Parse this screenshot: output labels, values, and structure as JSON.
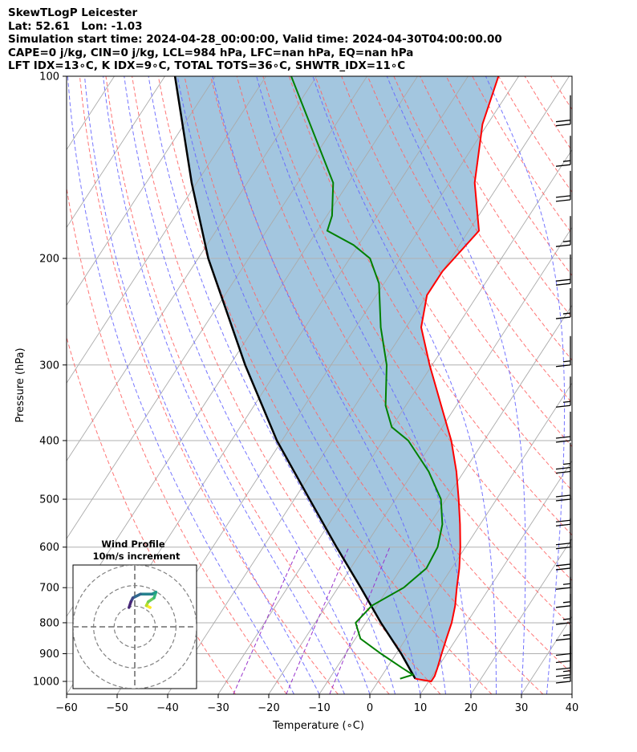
{
  "header": {
    "line1": "SkewTLogP Leicester",
    "line2": "Lat: 52.61   Lon: -1.03",
    "line3": "Simulation start time: 2024-04-28_00:00:00, Valid time: 2024-04-30T04:00:00.00",
    "line4": "CAPE=0 j/kg, CIN=0 j/kg, LCL=984 hPa, LFC=nan hPa, EQ=nan hPa",
    "line5": "LFT IDX=13∘C, K IDX=9∘C, TOTAL TOTS=36∘C, SHWTR_IDX=11∘C"
  },
  "chart_data": {
    "type": "skew-t log-p",
    "xlabel": "Temperature (∘C)",
    "ylabel": "Pressure (hPa)",
    "xlim": [
      -60,
      40
    ],
    "ylim": [
      1050,
      100
    ],
    "y_scale": "log",
    "x_ticks": [
      "−60",
      "−50",
      "−40",
      "−30",
      "−20",
      "−10",
      "0",
      "10",
      "20",
      "30",
      "40"
    ],
    "y_ticks": [
      "100",
      "200",
      "300",
      "400",
      "500",
      "600",
      "700",
      "800",
      "900",
      "1000"
    ],
    "grid": true,
    "colors": {
      "temperature": "#ff0000",
      "dewpoint": "#008000",
      "parcel": "#000000",
      "cin_cape_shading": "#a3c6df",
      "dry_adiabats": "#ff6666",
      "moist_adiabats": "#6666ff",
      "mixing_ratio": "#9933cc",
      "isotherms": "#aaaaaa"
    },
    "temperature_profile": [
      {
        "p": 990,
        "t": 7
      },
      {
        "p": 1000,
        "t": 10.5
      },
      {
        "p": 980,
        "t": 10.5
      },
      {
        "p": 950,
        "t": 10
      },
      {
        "p": 900,
        "t": 9
      },
      {
        "p": 850,
        "t": 8
      },
      {
        "p": 800,
        "t": 7
      },
      {
        "p": 750,
        "t": 5.5
      },
      {
        "p": 700,
        "t": 3.5
      },
      {
        "p": 650,
        "t": 1.5
      },
      {
        "p": 600,
        "t": -1
      },
      {
        "p": 550,
        "t": -4
      },
      {
        "p": 500,
        "t": -7.5
      },
      {
        "p": 450,
        "t": -11.5
      },
      {
        "p": 400,
        "t": -16.5
      },
      {
        "p": 350,
        "t": -23
      },
      {
        "p": 300,
        "t": -30.5
      },
      {
        "p": 260,
        "t": -37
      },
      {
        "p": 230,
        "t": -40
      },
      {
        "p": 210,
        "t": -40
      },
      {
        "p": 180,
        "t": -38
      },
      {
        "p": 150,
        "t": -45
      },
      {
        "p": 120,
        "t": -51
      },
      {
        "p": 100,
        "t": -54
      }
    ],
    "dewpoint_profile": [
      {
        "p": 990,
        "t": 4
      },
      {
        "p": 975,
        "t": 6
      },
      {
        "p": 950,
        "t": 3
      },
      {
        "p": 900,
        "t": -3
      },
      {
        "p": 850,
        "t": -9
      },
      {
        "p": 800,
        "t": -12
      },
      {
        "p": 750,
        "t": -11
      },
      {
        "p": 700,
        "t": -7
      },
      {
        "p": 650,
        "t": -5
      },
      {
        "p": 600,
        "t": -5.5
      },
      {
        "p": 550,
        "t": -7.5
      },
      {
        "p": 500,
        "t": -11
      },
      {
        "p": 450,
        "t": -17
      },
      {
        "p": 400,
        "t": -25
      },
      {
        "p": 380,
        "t": -30
      },
      {
        "p": 350,
        "t": -34
      },
      {
        "p": 300,
        "t": -39
      },
      {
        "p": 260,
        "t": -45
      },
      {
        "p": 220,
        "t": -51
      },
      {
        "p": 200,
        "t": -56
      },
      {
        "p": 190,
        "t": -61
      },
      {
        "p": 180,
        "t": -68
      },
      {
        "p": 170,
        "t": -69
      },
      {
        "p": 150,
        "t": -73
      },
      {
        "p": 100,
        "t": -95
      }
    ],
    "parcel_profile": [
      {
        "p": 990,
        "t": 7
      },
      {
        "p": 900,
        "t": 1
      },
      {
        "p": 800,
        "t": -7
      },
      {
        "p": 700,
        "t": -15.5
      },
      {
        "p": 600,
        "t": -25.5
      },
      {
        "p": 500,
        "t": -37
      },
      {
        "p": 400,
        "t": -51
      },
      {
        "p": 300,
        "t": -67
      },
      {
        "p": 200,
        "t": -88
      },
      {
        "p": 150,
        "t": -101
      },
      {
        "p": 100,
        "t": -118
      }
    ],
    "wind_barbs": [
      {
        "p": 1000,
        "speed_kt": 15
      },
      {
        "p": 975,
        "speed_kt": 15
      },
      {
        "p": 950,
        "speed_kt": 10
      },
      {
        "p": 925,
        "speed_kt": 10
      },
      {
        "p": 900,
        "speed_kt": 10
      },
      {
        "p": 850,
        "speed_kt": 15
      },
      {
        "p": 800,
        "speed_kt": 15
      },
      {
        "p": 750,
        "speed_kt": 15
      },
      {
        "p": 700,
        "speed_kt": 15
      },
      {
        "p": 650,
        "speed_kt": 20
      },
      {
        "p": 600,
        "speed_kt": 20
      },
      {
        "p": 550,
        "speed_kt": 20
      },
      {
        "p": 500,
        "speed_kt": 20
      },
      {
        "p": 450,
        "speed_kt": 25
      },
      {
        "p": 400,
        "speed_kt": 20
      },
      {
        "p": 350,
        "speed_kt": 15
      },
      {
        "p": 300,
        "speed_kt": 15
      },
      {
        "p": 250,
        "speed_kt": 15
      },
      {
        "p": 220,
        "speed_kt": 20
      },
      {
        "p": 190,
        "speed_kt": 15
      },
      {
        "p": 160,
        "speed_kt": 20
      },
      {
        "p": 140,
        "speed_kt": 15
      },
      {
        "p": 120,
        "speed_kt": 20
      }
    ],
    "hodograph": {
      "title": "Wind Profile",
      "subtitle": "10m/s increment",
      "rings_ms": [
        10,
        20,
        30
      ],
      "points": [
        {
          "u": 8,
          "v": 10
        },
        {
          "u": 6,
          "v": 11
        },
        {
          "u": 7,
          "v": 13
        },
        {
          "u": 10,
          "v": 15
        },
        {
          "u": 11,
          "v": 18
        },
        {
          "u": 9,
          "v": 17
        },
        {
          "u": 3,
          "v": 17
        },
        {
          "u": -1,
          "v": 15
        },
        {
          "u": -2,
          "v": 13
        },
        {
          "u": -3,
          "v": 10
        }
      ]
    }
  }
}
